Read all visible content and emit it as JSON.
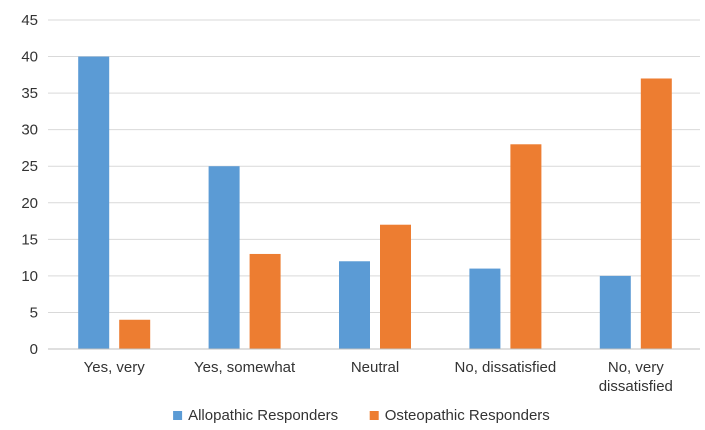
{
  "chart_data": {
    "type": "bar",
    "categories": [
      [
        "Yes, very"
      ],
      [
        "Yes, somewhat"
      ],
      [
        "Neutral"
      ],
      [
        "No, dissatisfied"
      ],
      [
        "No, very",
        "dissatisfied"
      ]
    ],
    "series": [
      {
        "name": "Allopathic Responders",
        "color": "#5b9bd5",
        "values": [
          40,
          25,
          12,
          11,
          10
        ]
      },
      {
        "name": "Osteopathic Responders",
        "color": "#ed7d31",
        "values": [
          4,
          13,
          17,
          28,
          37
        ]
      }
    ],
    "ylim": [
      0,
      45
    ],
    "yticks": [
      0,
      5,
      10,
      15,
      20,
      25,
      30,
      35,
      40,
      45
    ],
    "grid": true,
    "legend": "bottom"
  }
}
